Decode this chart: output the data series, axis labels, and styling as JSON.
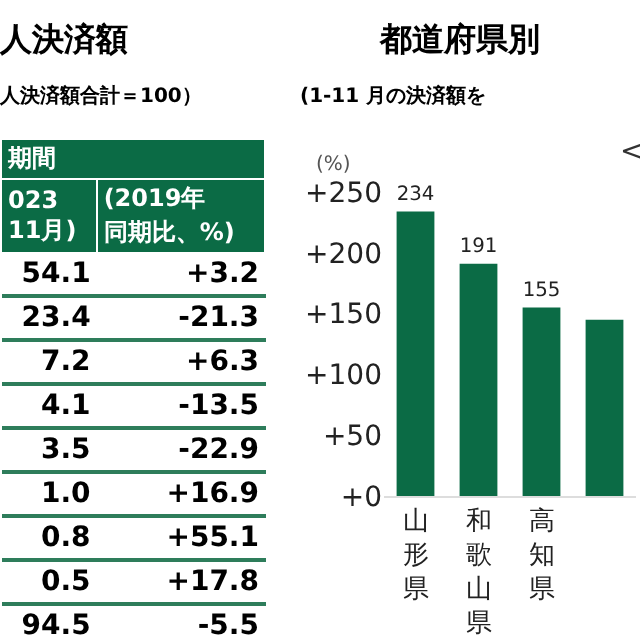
{
  "chart_data": [
    {
      "type": "other",
      "title": "人決済額",
      "subtitle": "人決済額合計＝100）",
      "annotations": [
        "期間",
        "023",
        "11月)",
        "(2019年",
        "同期比、%)",
        "54.1",
        "+3.2",
        "23.4",
        "-21.3",
        "7.2",
        "+6.3",
        "4.1",
        "-13.5",
        "3.5",
        "-22.9",
        "1.0",
        "+16.9",
        "0.8",
        "+55.1",
        "0.5",
        "+17.8",
        "94.5",
        "-5.5"
      ]
    },
    {
      "type": "bar",
      "title": "都道府県別",
      "subtitle": "(1-11 月の決済額を",
      "ylabel": "(%)",
      "annotations": [
        "<"
      ],
      "categories": [
        "山形県",
        "和歌山県",
        "高知県",
        null
      ],
      "values": [
        234,
        191,
        155,
        145
      ],
      "value_labels": [
        "234",
        "191",
        "155",
        null
      ],
      "color": "#0b6b45",
      "ylim": [
        0,
        250
      ],
      "yticks": [
        {
          "value": 0,
          "label": "+0"
        },
        {
          "value": 50,
          "label": "+50"
        },
        {
          "value": 100,
          "label": "+100"
        },
        {
          "value": 150,
          "label": "+150"
        },
        {
          "value": 200,
          "label": "+200"
        },
        {
          "value": 250,
          "label": "+250"
        }
      ],
      "grid": false,
      "legend": false
    }
  ]
}
